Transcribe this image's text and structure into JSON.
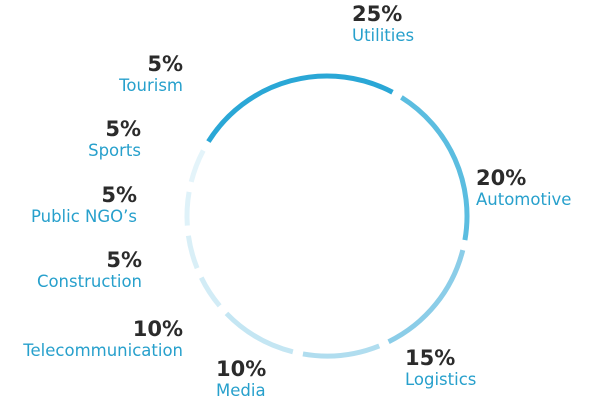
{
  "chart_data": {
    "type": "pie",
    "style": "segmented ring",
    "slices": [
      {
        "label": "Utilities",
        "value": 25,
        "value_label": "25%",
        "color": "#2aa7d6"
      },
      {
        "label": "Automotive",
        "value": 20,
        "value_label": "20%",
        "color": "#5bbde0"
      },
      {
        "label": "Logistics",
        "value": 15,
        "value_label": "15%",
        "color": "#8bcde8"
      },
      {
        "label": "Media",
        "value": 10,
        "value_label": "10%",
        "color": "#b0ddef"
      },
      {
        "label": "Telecommunication",
        "value": 10,
        "value_label": "10%",
        "color": "#c4e6f3"
      },
      {
        "label": "Construction",
        "value": 5,
        "value_label": "5%",
        "color": "#d2ecf6"
      },
      {
        "label": "Public NGO’s",
        "value": 5,
        "value_label": "5%",
        "color": "#d9eff7"
      },
      {
        "label": "Sports",
        "value": 5,
        "value_label": "5%",
        "color": "#dff2f9"
      },
      {
        "label": "Tourism",
        "value": 5,
        "value_label": "5%",
        "color": "#e4f4fa"
      }
    ]
  },
  "colors": {
    "label_text": "#27a0cc",
    "percent_text": "#2b2b2b"
  }
}
